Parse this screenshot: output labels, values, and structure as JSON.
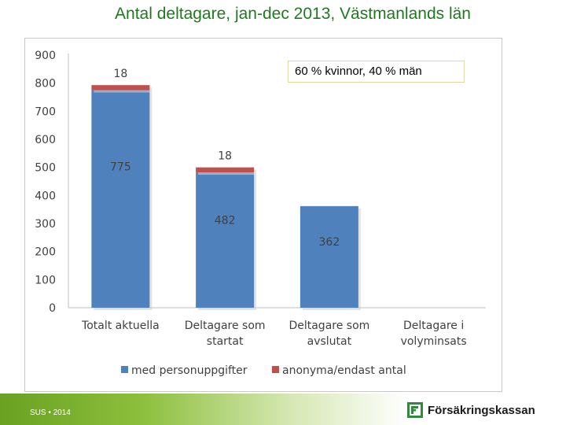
{
  "slide": {
    "title": "Antal deltagare, jan-dec 2013, Västmanlands län",
    "footer": "SUS • 2014",
    "brand_name": "Försäkringskassan",
    "note": "60 % kvinnor, 40 % män"
  },
  "colors": {
    "series_1": "#4f81bd",
    "series_2": "#c0504d",
    "title": "#1f7a1f",
    "footer_green": "#6aa121"
  },
  "chart_data": {
    "type": "bar",
    "stacked": true,
    "title": "",
    "xlabel": "",
    "ylabel": "",
    "ylim": [
      0,
      900
    ],
    "yticks": [
      "0",
      "100",
      "200",
      "300",
      "400",
      "500",
      "600",
      "700",
      "800",
      "900"
    ],
    "categories": [
      [
        "Totalt aktuella"
      ],
      [
        "Deltagare som",
        "startat"
      ],
      [
        "Deltagare som",
        "avslutat"
      ],
      [
        "Deltagare i",
        "volyminsats"
      ]
    ],
    "series": [
      {
        "name": "med personuppgifter",
        "values": [
          775,
          482,
          362,
          null
        ],
        "labels": [
          "775",
          "482",
          "362",
          ""
        ]
      },
      {
        "name": "anonyma/endast antal",
        "values": [
          18,
          18,
          null,
          null
        ],
        "labels": [
          "18",
          "18",
          "",
          ""
        ]
      }
    ],
    "grid": false,
    "legend_position": "bottom"
  }
}
